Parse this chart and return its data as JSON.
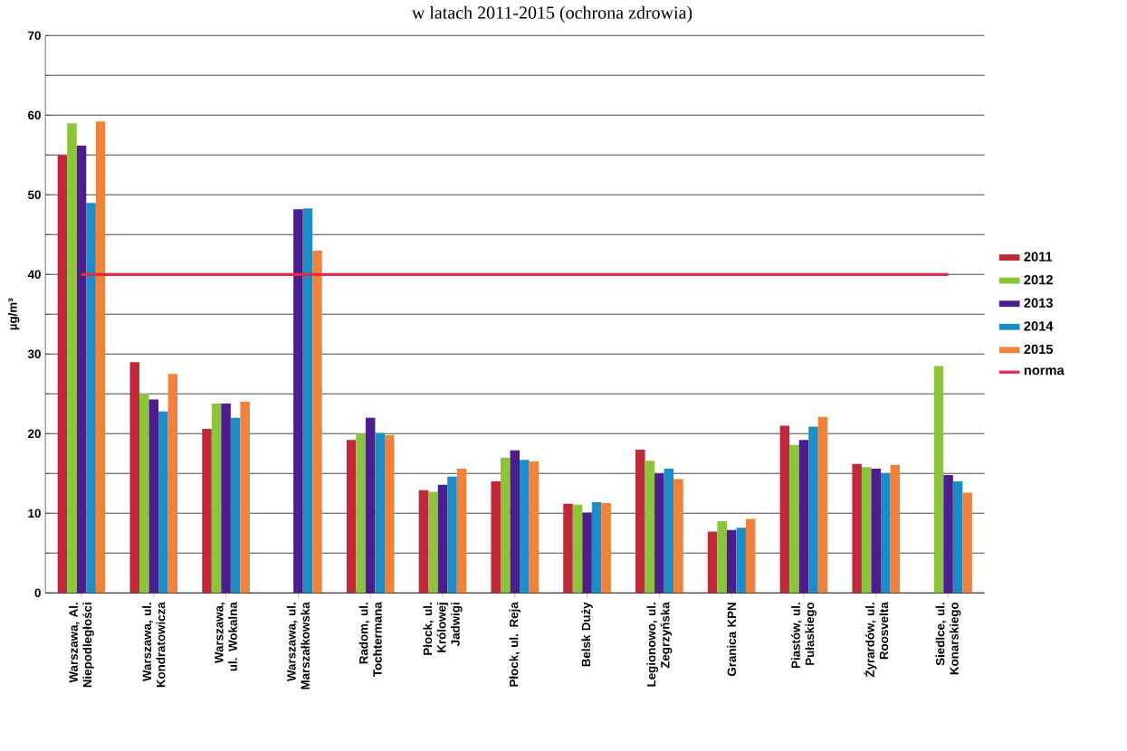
{
  "chart_data": {
    "type": "bar",
    "title": "w latach 2011-2015 (ochrona zdrowia)",
    "ylabel": "µg/m³",
    "categories": [
      "Warszawa, Al. Niepodległości",
      "Warszawa, ul. Kondratowicza",
      "Warszawa, ul. Wokalna",
      "Warszawa, ul. Marszałkowska",
      "Radom, ul. Tochtermana",
      "Płock, ul. Królowej Jadwigi",
      "Płock, ul. Reja",
      "Belsk Duży",
      "Legionowo, ul. Zegrzyńska",
      "Granica KPN",
      "Piastów, ul. Pułaskiego",
      "Żyrardów, ul. Roosvelta",
      "Siedlce, ul. Konarskiego"
    ],
    "series": [
      {
        "name": "2011",
        "color": "#c0293a",
        "values": [
          55,
          29,
          20.6,
          null,
          19.2,
          12.9,
          14,
          11.2,
          18,
          7.7,
          21,
          16.2,
          null
        ]
      },
      {
        "name": "2012",
        "color": "#8cc43c",
        "values": [
          59,
          25,
          23.8,
          null,
          20,
          12.7,
          17,
          11.1,
          16.6,
          9,
          18.6,
          15.8,
          28.5
        ]
      },
      {
        "name": "2013",
        "color": "#4b1e8c",
        "values": [
          56.2,
          24.3,
          23.8,
          48.2,
          22,
          13.6,
          17.9,
          10.1,
          15,
          7.9,
          19.2,
          15.6,
          14.8
        ]
      },
      {
        "name": "2014",
        "color": "#1e8cc4",
        "values": [
          49,
          22.8,
          22,
          48.3,
          20.1,
          14.6,
          16.7,
          11.4,
          15.6,
          8.2,
          20.9,
          15,
          14
        ]
      },
      {
        "name": "2015",
        "color": "#f0823c",
        "values": [
          59.2,
          27.5,
          24,
          43,
          19.8,
          15.6,
          16.5,
          11.3,
          14.3,
          9.3,
          22.1,
          16.1,
          12.6
        ]
      },
      {
        "name": "norma",
        "type": "line",
        "color": "#e8284a",
        "values": [
          40,
          40,
          40,
          40,
          40,
          40,
          40,
          40,
          40,
          40,
          40,
          40,
          40
        ]
      }
    ],
    "ylim": [
      0,
      70
    ],
    "yticks": [
      0,
      {
        "value": 5,
        "label": null
      },
      10,
      {
        "value": 15,
        "label": null
      },
      20,
      {
        "value": 25,
        "label": null
      },
      30,
      {
        "value": 35,
        "label": null
      },
      40,
      {
        "value": 45,
        "label": null
      },
      50,
      {
        "value": 55,
        "label": null
      },
      60,
      {
        "value": 65,
        "label": null
      },
      70
    ],
    "grid": true,
    "legend": "right"
  }
}
